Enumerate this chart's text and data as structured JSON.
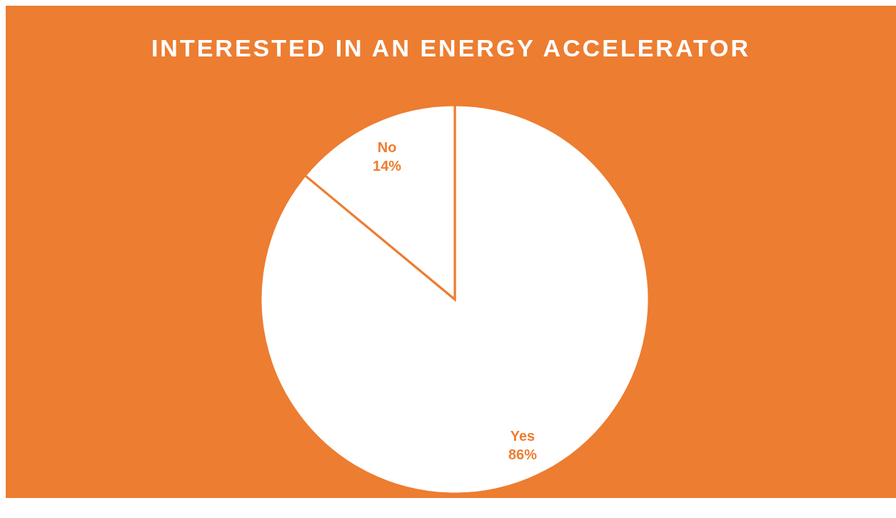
{
  "chart_data": {
    "type": "pie",
    "title": "INTERESTED IN AN ENERGY ACCELERATOR",
    "categories": [
      "Yes",
      "No"
    ],
    "values": [
      86,
      14
    ],
    "value_labels": [
      "86%",
      "14%"
    ],
    "colors": [
      "#ffffff",
      "#ffffff"
    ],
    "legend": false
  }
}
